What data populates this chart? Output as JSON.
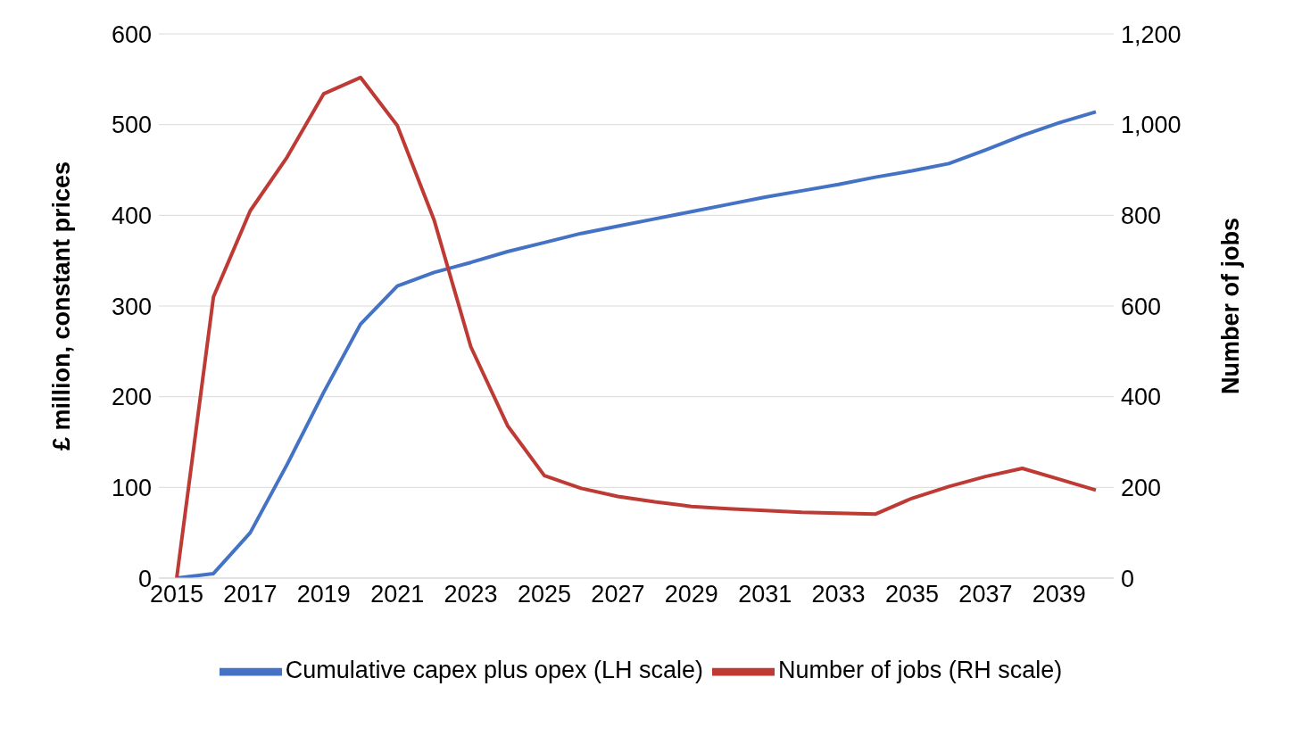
{
  "chart_data": {
    "type": "line",
    "categories": [
      "2015",
      null,
      "2017",
      null,
      "2019",
      null,
      "2021",
      null,
      "2023",
      null,
      "2025",
      null,
      "2027",
      null,
      "2029",
      null,
      "2031",
      null,
      "2033",
      null,
      "2035",
      null,
      "2037",
      null,
      "2039",
      null
    ],
    "series": [
      {
        "name": "Cumulative capex plus opex (LH scale)",
        "color": "#4472c4",
        "values": [
          0,
          5,
          50,
          125,
          205,
          280,
          322,
          337,
          348,
          360,
          370,
          380,
          388,
          396,
          404,
          412,
          420,
          427,
          434,
          442,
          449,
          457,
          472,
          488,
          502,
          514
        ]
      },
      {
        "name": "Number of jobs (RH scale)",
        "color": "#be3a34",
        "axis": "y2",
        "values": [
          0,
          620,
          810,
          928,
          1068,
          1104,
          998,
          790,
          510,
          336,
          226,
          198,
          180,
          168,
          158,
          153,
          149,
          145,
          143,
          141,
          176,
          202,
          224,
          242,
          218,
          194
        ]
      }
    ],
    "ylabel": "£ million, constant prices",
    "y2label": "Number of jobs",
    "ylim": [
      0,
      600
    ],
    "yticks": [
      0,
      100,
      200,
      300,
      400,
      500,
      600
    ],
    "y2lim": [
      0,
      1200
    ],
    "y2ticks": [
      0,
      {
        "value": 200,
        "label": "200"
      },
      {
        "value": 400,
        "label": "400"
      },
      {
        "value": 600,
        "label": "600"
      },
      {
        "value": 800,
        "label": "800"
      },
      {
        "value": 1000,
        "label": "1,000"
      },
      {
        "value": 1200,
        "label": "1,200"
      }
    ],
    "grid": "y",
    "legend": "bottom",
    "marker": "none",
    "line_style": "solid"
  }
}
